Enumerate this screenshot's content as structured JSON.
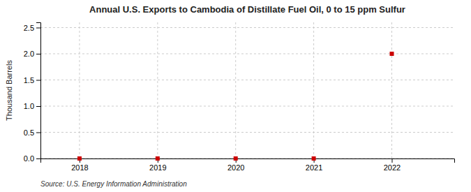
{
  "chart_data": {
    "type": "scatter",
    "title": "Annual U.S. Exports to Cambodia of Distillate Fuel Oil, 0 to 15 ppm Sulfur",
    "ylabel": "Thousand Barrels",
    "source": "Source: U.S. Energy Information Administration",
    "x": [
      2018,
      2019,
      2020,
      2021,
      2022
    ],
    "values": [
      0,
      0,
      0,
      0,
      2.0
    ],
    "color": "#cc0000",
    "marker": "square",
    "xlim": [
      2017.5,
      2022.8
    ],
    "ylim": [
      0.0,
      2.6
    ],
    "xticks": [
      2018,
      2019,
      2020,
      2021,
      2022
    ],
    "yticks": [
      {
        "value": 0.0,
        "label": "0.0"
      },
      0.5,
      {
        "value": 1.0,
        "label": "1.0"
      },
      1.5,
      {
        "value": 2.0,
        "label": "2.0"
      },
      2.5
    ],
    "grid": true
  }
}
